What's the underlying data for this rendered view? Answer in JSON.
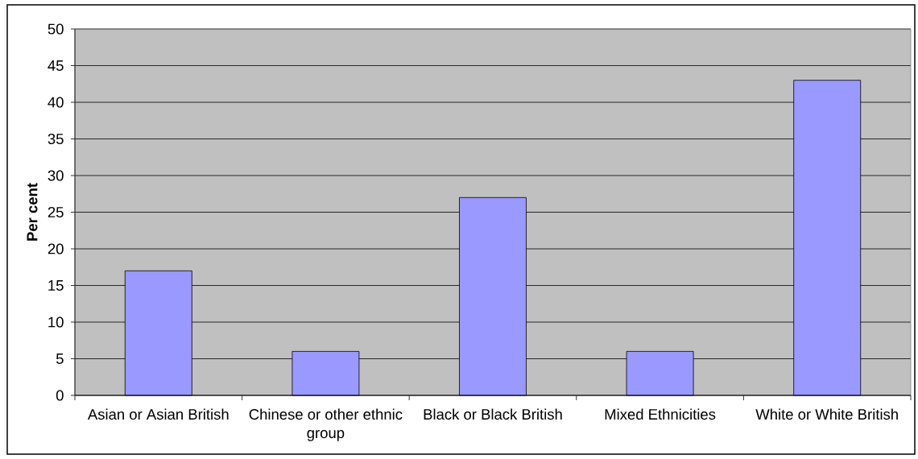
{
  "chart_data": {
    "type": "bar",
    "ylabel": "Per cent",
    "categories": [
      "Asian or Asian British",
      "Chinese or other ethnic group",
      "Black or Black British",
      "Mixed Ethnicities",
      "White or White British"
    ],
    "values": [
      17,
      6,
      27,
      6,
      43
    ],
    "color": "#9999ff",
    "ylim": [
      0,
      50
    ],
    "yticks": [
      0,
      5,
      10,
      15,
      20,
      25,
      30,
      35,
      40,
      45,
      50
    ],
    "grid": "y"
  }
}
